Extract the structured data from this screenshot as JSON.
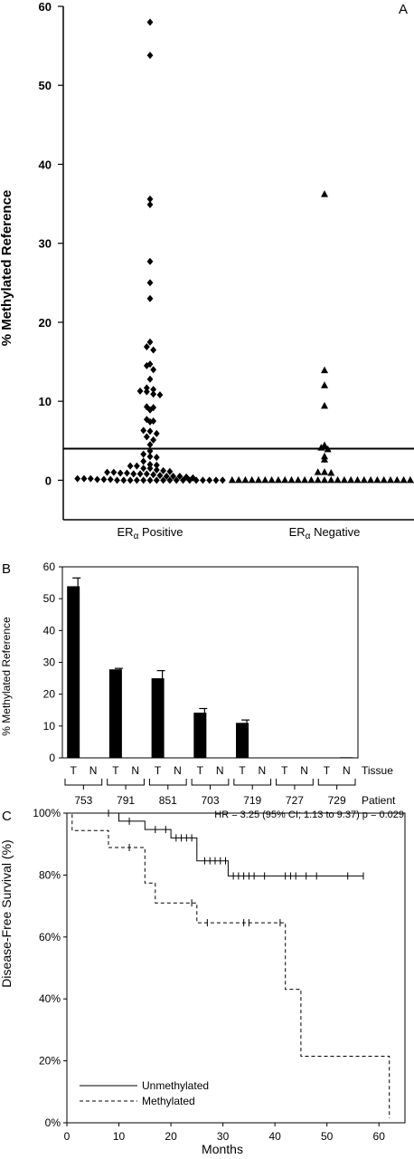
{
  "panels": {
    "a": {
      "letter": "A"
    },
    "b": {
      "letter": "B",
      "tissue_label": "Tissue",
      "patient_label": "Patient"
    },
    "c": {
      "letter": "C",
      "annotation": "HR = 3.25 (95% CI; 1.13 to 9.37) p = 0.029"
    }
  },
  "chart_data": [
    {
      "type": "scatter",
      "panel": "A",
      "ylabel": "% Methylated Reference",
      "ylim": [
        -5,
        60
      ],
      "yticks": [
        0,
        10,
        20,
        30,
        40,
        50,
        60
      ],
      "categories": [
        "ERα Positive",
        "ERα Negative"
      ],
      "category_labels": [
        {
          "main": "ER",
          "sub": "α",
          "rest": " Positive"
        },
        {
          "main": "ER",
          "sub": "α",
          "rest": " Negative"
        }
      ],
      "threshold": 4,
      "series": [
        {
          "marker": "diamond",
          "values": [
            58,
            53.8,
            35.6,
            34.9,
            27.7,
            25,
            23,
            17.5,
            16.9,
            16.5,
            14.7,
            14.5,
            14,
            12.8,
            11.7,
            11.5,
            11.3,
            11.2,
            10.9,
            10.8,
            9.3,
            9.2,
            8.9,
            7.7,
            7.5,
            7.4,
            6.3,
            6.2,
            5.9,
            5.5,
            5.1,
            4.5,
            3.7,
            3.3,
            3,
            2.9,
            2.4,
            2,
            1.9,
            1.8,
            1.8,
            1.5,
            1.5,
            1.3,
            1.2,
            1.1,
            1,
            1,
            0.9,
            0.9,
            0.8,
            0.8,
            0.8,
            0.7,
            0.6,
            0.5,
            0.5,
            0.5,
            0.4,
            0.3,
            0.2,
            0.2,
            0.2,
            0.1,
            0.1,
            0.1,
            0,
            0,
            0,
            0,
            0,
            0,
            0,
            0,
            0,
            0,
            0,
            0,
            0,
            0,
            0,
            0,
            0
          ]
        },
        {
          "marker": "triangle",
          "values": [
            36.2,
            13.9,
            12,
            9.4,
            4.4,
            4.1,
            3.9,
            3,
            2.6,
            1,
            1,
            0.9,
            0,
            0,
            0,
            0,
            0,
            0,
            0,
            0,
            0,
            0,
            0,
            0,
            0,
            0,
            0,
            0,
            0,
            0,
            0,
            0,
            0,
            0,
            0,
            0,
            0,
            0,
            0,
            0,
            0
          ]
        }
      ]
    },
    {
      "type": "bar",
      "panel": "B",
      "ylabel": "% Methylated Reference",
      "ylim": [
        0,
        60
      ],
      "yticks": [
        0,
        10,
        20,
        30,
        40,
        50,
        60
      ],
      "patients": [
        "753",
        "791",
        "851",
        "703",
        "719",
        "727",
        "729"
      ],
      "tissues": [
        "T",
        "N"
      ],
      "values_T": [
        53.9,
        27.8,
        25,
        14.2,
        11,
        0,
        0
      ],
      "errors_T": [
        2.6,
        0.3,
        2.4,
        1.3,
        0.9,
        0,
        0
      ],
      "values_N": [
        0,
        0,
        0,
        0,
        0,
        0,
        0.2
      ]
    },
    {
      "type": "line",
      "panel": "C",
      "xlabel": "Months",
      "ylabel": "Disease-Free Survival (%)",
      "xlim": [
        0,
        65
      ],
      "ylim": [
        0,
        100
      ],
      "xticks": [
        0,
        10,
        20,
        30,
        40,
        50,
        60
      ],
      "yticks": [
        0,
        20,
        40,
        60,
        80,
        100
      ],
      "ytick_suffix": "%",
      "legend_position": "bottom-left",
      "series": [
        {
          "name": "Unmethylated",
          "style": "solid",
          "steps": [
            [
              0,
              100
            ],
            [
              10,
              100
            ],
            [
              10,
              97.4
            ],
            [
              15,
              97.4
            ],
            [
              15,
              94.7
            ],
            [
              20,
              94.7
            ],
            [
              20,
              92
            ],
            [
              25,
              92
            ],
            [
              25,
              84.6
            ],
            [
              31,
              84.6
            ],
            [
              31,
              79.7
            ],
            [
              57,
              79.7
            ]
          ],
          "censored": [
            [
              8,
              100
            ],
            [
              12,
              97.4
            ],
            [
              17,
              94.7
            ],
            [
              19,
              94.7
            ],
            [
              21,
              92
            ],
            [
              22,
              92
            ],
            [
              23,
              92
            ],
            [
              24,
              92
            ],
            [
              26.5,
              84.6
            ],
            [
              27.5,
              84.6
            ],
            [
              28.5,
              84.6
            ],
            [
              29.5,
              84.6
            ],
            [
              30.5,
              84.6
            ],
            [
              32,
              79.7
            ],
            [
              33,
              79.7
            ],
            [
              34,
              79.7
            ],
            [
              35,
              79.7
            ],
            [
              36,
              79.7
            ],
            [
              38,
              79.7
            ],
            [
              42,
              79.7
            ],
            [
              43,
              79.7
            ],
            [
              44,
              79.7
            ],
            [
              46,
              79.7
            ],
            [
              48,
              79.7
            ],
            [
              54,
              79.7
            ],
            [
              57,
              79.7
            ]
          ]
        },
        {
          "name": "Methylated",
          "style": "dashed",
          "steps": [
            [
              0,
              100
            ],
            [
              1,
              100
            ],
            [
              1,
              94.4
            ],
            [
              8,
              94.4
            ],
            [
              8,
              88.9
            ],
            [
              15,
              88.9
            ],
            [
              15,
              77.4
            ],
            [
              17,
              77.4
            ],
            [
              17,
              71
            ],
            [
              25,
              71
            ],
            [
              25,
              64.6
            ],
            [
              42,
              64.6
            ],
            [
              42,
              43.1
            ],
            [
              45,
              43.1
            ],
            [
              45,
              21.5
            ],
            [
              62,
              21.5
            ],
            [
              62,
              1.5
            ]
          ],
          "censored": [
            [
              12,
              88.9
            ],
            [
              24,
              71
            ],
            [
              27,
              64.6
            ],
            [
              34,
              64.6
            ],
            [
              35,
              64.6
            ],
            [
              41,
              64.6
            ]
          ]
        }
      ]
    }
  ]
}
